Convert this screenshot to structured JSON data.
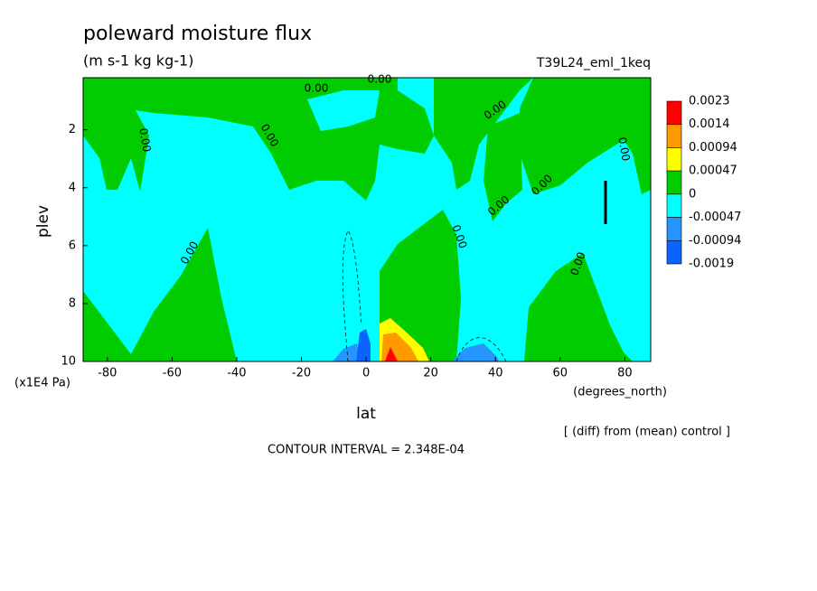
{
  "chart_data": {
    "type": "contour",
    "title": "poleward moisture flux",
    "subtitle": "(m s-1 kg kg-1)",
    "run_label": "T39L24_eml_1keq",
    "x_label": "lat",
    "y_label": "plev",
    "x_unit": "(degrees_north)",
    "y_unit": "(x1E4 Pa)",
    "footnote": "[ (diff) from (mean) control ]",
    "contour_interval": "CONTOUR INTERVAL = 2.348E-04",
    "xlim": [
      -87.5,
      88
    ],
    "xticks": [
      -80,
      -60,
      -40,
      -20,
      0,
      20,
      40,
      60,
      80
    ],
    "ylim": [
      10,
      0.2
    ],
    "yticks": [
      2,
      4,
      6,
      8,
      10
    ],
    "levels": [
      0.0023,
      0.0014,
      0.00094,
      0.00047,
      0,
      -0.00047,
      -0.00094,
      -0.0019
    ],
    "colors": [
      "#ff0000",
      "#ff9900",
      "#ffff00",
      "#00cc00",
      "#00ffff",
      "#2596ff",
      "#0a64ff"
    ],
    "contour_labels": [
      "0.00",
      "0.00",
      "0.00",
      "0.00",
      "0.00",
      "0.00",
      "0.00",
      "0.00",
      "0.00",
      "0.00",
      "0.00"
    ]
  }
}
